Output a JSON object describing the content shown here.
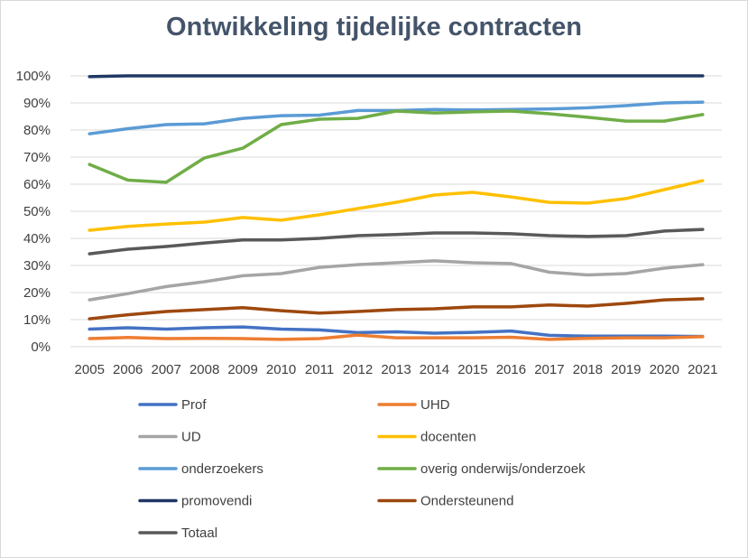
{
  "chart_data": {
    "type": "line",
    "title": "Ontwikkeling tijdelijke contracten",
    "xlabel": "",
    "ylabel": "",
    "ylim": [
      0,
      100
    ],
    "y_tick_labels": [
      "0%",
      "10%",
      "20%",
      "30%",
      "40%",
      "50%",
      "60%",
      "70%",
      "80%",
      "90%",
      "100%"
    ],
    "grid": true,
    "legend_position": "bottom",
    "x": [
      "2005",
      "2006",
      "2007",
      "2008",
      "2009",
      "2010",
      "2011",
      "2012",
      "2013",
      "2014",
      "2015",
      "2016",
      "2017",
      "2018",
      "2019",
      "2020",
      "2021"
    ],
    "series": [
      {
        "name": "Prof",
        "color": "#4472c4",
        "values": [
          6.5,
          7,
          6.5,
          7,
          7.3,
          6.5,
          6.2,
          5.2,
          5.5,
          5,
          5.3,
          5.8,
          4.2,
          3.9,
          3.9,
          3.9,
          3.8
        ]
      },
      {
        "name": "UHD",
        "color": "#ed7d31",
        "values": [
          3,
          3.4,
          3,
          3.1,
          3,
          2.7,
          3,
          4.3,
          3.3,
          3.3,
          3.3,
          3.5,
          2.7,
          3.1,
          3.3,
          3.3,
          3.7
        ]
      },
      {
        "name": "UD",
        "color": "#a5a5a5",
        "values": [
          17.3,
          19.6,
          22.2,
          24,
          26.2,
          27,
          29.3,
          30.3,
          31,
          31.7,
          31,
          30.7,
          27.5,
          26.5,
          27,
          29,
          30.3
        ]
      },
      {
        "name": "docenten",
        "color": "#ffc000",
        "values": [
          43,
          44.4,
          45.3,
          46,
          47.7,
          46.7,
          48.7,
          51,
          53.3,
          56,
          57,
          55.3,
          53.3,
          53,
          54.7,
          58,
          61.3
        ]
      },
      {
        "name": "onderzoekers",
        "color": "#5b9bd5",
        "values": [
          78.6,
          80.5,
          82,
          82.3,
          84.3,
          85.3,
          85.5,
          87.2,
          87.2,
          87.6,
          87.4,
          87.6,
          87.8,
          88.2,
          89,
          90,
          90.3
        ]
      },
      {
        "name": "overig onderwijs/onderzoek",
        "color": "#70ad47",
        "values": [
          67.3,
          61.5,
          60.7,
          69.7,
          73.3,
          82,
          84,
          84.3,
          87,
          86.3,
          86.7,
          87,
          86,
          84.7,
          83.3,
          83.3,
          85.7
        ]
      },
      {
        "name": "promovendi",
        "color": "#203864",
        "values": [
          99.7,
          100,
          100,
          100,
          100,
          100,
          100,
          100,
          100,
          100,
          100,
          100,
          100,
          100,
          100,
          100,
          100
        ]
      },
      {
        "name": "Ondersteunend",
        "color": "#9e480e",
        "values": [
          10.3,
          11.8,
          13,
          13.7,
          14.4,
          13.3,
          12.4,
          13,
          13.7,
          14,
          14.7,
          14.7,
          15.4,
          15,
          16,
          17.3,
          17.7
        ]
      },
      {
        "name": "Totaal",
        "color": "#595959",
        "values": [
          34.3,
          36,
          37,
          38.3,
          39.4,
          39.4,
          40,
          41,
          41.4,
          42,
          42,
          41.7,
          41,
          40.7,
          41,
          42.7,
          43.3
        ]
      }
    ]
  }
}
